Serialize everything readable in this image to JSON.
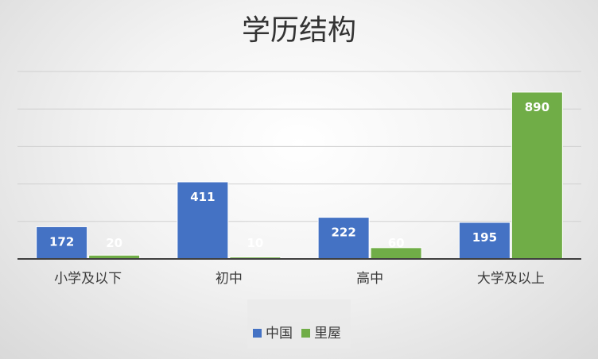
{
  "chart_data": {
    "type": "bar",
    "title": "学历结构",
    "categories": [
      "小学及以下",
      "初中",
      "高中",
      "大学及以上"
    ],
    "series": [
      {
        "name": "中国",
        "values": [
          172,
          411,
          222,
          195
        ],
        "color": "#4472C4"
      },
      {
        "name": "里屋",
        "values": [
          20,
          10,
          60,
          890
        ],
        "color": "#70AD47"
      }
    ],
    "ylim": [
      0,
      1000
    ],
    "grid": true,
    "legend": "bottom",
    "data_labels": true
  }
}
